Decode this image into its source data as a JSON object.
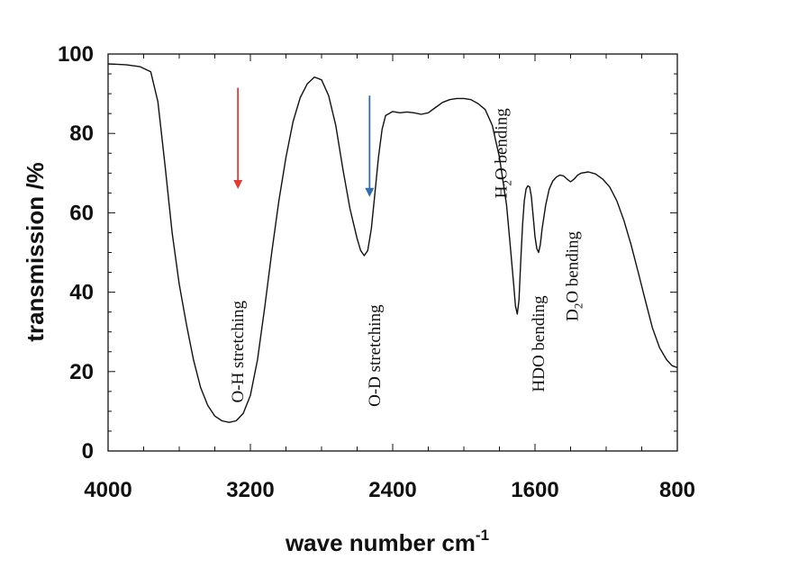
{
  "chart_data": {
    "type": "line",
    "title": "",
    "xlabel": "wave number cm",
    "xlabel_sup": "-1",
    "ylabel": "transmission /%",
    "xlim": [
      4000,
      800
    ],
    "ylim": [
      0,
      100
    ],
    "x_ticks": [
      4000,
      3200,
      2400,
      1600,
      800
    ],
    "y_ticks": [
      0,
      20,
      40,
      60,
      80,
      100
    ],
    "grid": false,
    "series": [
      {
        "color": "#111111",
        "points": [
          [
            4000,
            97.5
          ],
          [
            3900,
            97.3
          ],
          [
            3820,
            96.8
          ],
          [
            3760,
            95.5
          ],
          [
            3720,
            88
          ],
          [
            3680,
            72
          ],
          [
            3640,
            55
          ],
          [
            3600,
            42
          ],
          [
            3560,
            32
          ],
          [
            3520,
            23
          ],
          [
            3480,
            16
          ],
          [
            3440,
            11.5
          ],
          [
            3400,
            8.8
          ],
          [
            3360,
            7.6
          ],
          [
            3320,
            7.2
          ],
          [
            3280,
            7.6
          ],
          [
            3240,
            9.5
          ],
          [
            3200,
            14
          ],
          [
            3160,
            23
          ],
          [
            3120,
            36
          ],
          [
            3080,
            50
          ],
          [
            3040,
            63
          ],
          [
            3000,
            74
          ],
          [
            2960,
            83
          ],
          [
            2920,
            89
          ],
          [
            2880,
            92.5
          ],
          [
            2840,
            94.2
          ],
          [
            2800,
            93.5
          ],
          [
            2760,
            89.5
          ],
          [
            2720,
            82
          ],
          [
            2680,
            71
          ],
          [
            2640,
            61
          ],
          [
            2600,
            53.5
          ],
          [
            2580,
            50.5
          ],
          [
            2560,
            49.2
          ],
          [
            2540,
            50.5
          ],
          [
            2520,
            56
          ],
          [
            2500,
            65
          ],
          [
            2480,
            74
          ],
          [
            2460,
            81
          ],
          [
            2440,
            84.5
          ],
          [
            2400,
            85.5
          ],
          [
            2360,
            85.2
          ],
          [
            2320,
            85.4
          ],
          [
            2280,
            85.2
          ],
          [
            2240,
            84.8
          ],
          [
            2200,
            85.2
          ],
          [
            2160,
            86.5
          ],
          [
            2120,
            87.8
          ],
          [
            2080,
            88.5
          ],
          [
            2040,
            88.8
          ],
          [
            2000,
            88.8
          ],
          [
            1960,
            88.5
          ],
          [
            1920,
            87.5
          ],
          [
            1880,
            86
          ],
          [
            1840,
            82
          ],
          [
            1800,
            74
          ],
          [
            1760,
            62
          ],
          [
            1740,
            52
          ],
          [
            1720,
            42
          ],
          [
            1710,
            36.5
          ],
          [
            1700,
            34.5
          ],
          [
            1690,
            38
          ],
          [
            1680,
            48
          ],
          [
            1670,
            57
          ],
          [
            1660,
            63
          ],
          [
            1650,
            66
          ],
          [
            1640,
            66.8
          ],
          [
            1630,
            66.5
          ],
          [
            1620,
            64
          ],
          [
            1610,
            59
          ],
          [
            1600,
            54
          ],
          [
            1590,
            51
          ],
          [
            1580,
            50
          ],
          [
            1570,
            52
          ],
          [
            1560,
            56
          ],
          [
            1540,
            62
          ],
          [
            1520,
            66
          ],
          [
            1500,
            68
          ],
          [
            1480,
            69
          ],
          [
            1460,
            69.5
          ],
          [
            1440,
            69.3
          ],
          [
            1420,
            68.5
          ],
          [
            1400,
            67.8
          ],
          [
            1380,
            68.5
          ],
          [
            1360,
            69.5
          ],
          [
            1340,
            70
          ],
          [
            1300,
            70.3
          ],
          [
            1260,
            69.8
          ],
          [
            1220,
            68.5
          ],
          [
            1180,
            66.5
          ],
          [
            1140,
            63
          ],
          [
            1100,
            58
          ],
          [
            1060,
            52
          ],
          [
            1020,
            45
          ],
          [
            980,
            38
          ],
          [
            940,
            31
          ],
          [
            900,
            26
          ],
          [
            860,
            23
          ],
          [
            830,
            21.5
          ],
          [
            800,
            21
          ]
        ]
      }
    ],
    "annotations": [
      {
        "text": "O-H stretching",
        "x": 3240,
        "y": 25
      },
      {
        "text": "O-D stretching",
        "x": 2470,
        "y": 24
      },
      {
        "text": "H",
        "sub": "2",
        "rest": "O bending",
        "x": 1760,
        "y": 75
      },
      {
        "text": "HDO bending",
        "x": 1550,
        "y": 27
      },
      {
        "text": "D",
        "sub": "2",
        "rest": "O bending",
        "x": 1360,
        "y": 44
      }
    ],
    "arrows": [
      {
        "color": "#e53935",
        "x": 3270,
        "y_from": 91.5,
        "y_to": 66
      },
      {
        "color": "#2e6db4",
        "x": 2530,
        "y_from": 89.5,
        "y_to": 64
      }
    ]
  }
}
